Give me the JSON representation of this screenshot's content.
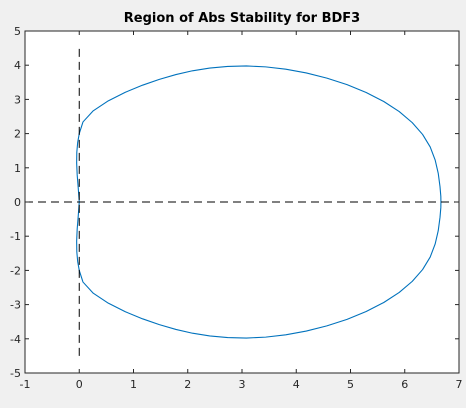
{
  "chart_data": {
    "type": "line",
    "title": "Region of Abs Stability for BDF3",
    "xlabel": "",
    "ylabel": "",
    "xlim": [
      -1,
      7
    ],
    "ylim": [
      -5,
      5
    ],
    "xticks": [
      -1,
      0,
      1,
      2,
      3,
      4,
      5,
      6,
      7
    ],
    "yticks": [
      -5,
      -4,
      -3,
      -2,
      -1,
      0,
      1,
      2,
      3,
      4,
      5
    ],
    "grid": false,
    "legend": "none",
    "background_color": "#f0f0f0",
    "axes_color": "#ffffff",
    "series": [
      {
        "style": "solid",
        "color": "#0072bd",
        "curve": "boundary locus z = (11/6 - 3w + 3/2 w^2 - 1/3 w^3)/w^3, w = exp(-i*theta)",
        "x": [
          0.0,
          0.069,
          0.258,
          0.535,
          0.85,
          1.167,
          1.476,
          1.782,
          2.088,
          2.405,
          2.735,
          3.08,
          3.437,
          3.807,
          4.185,
          4.564,
          4.936,
          5.289,
          5.613,
          5.898,
          6.138,
          6.329,
          6.469,
          6.56,
          6.617,
          6.65,
          6.665,
          6.667,
          6.665,
          6.65,
          6.617,
          6.56,
          6.469,
          6.329,
          6.138,
          5.898,
          5.613,
          5.289,
          4.936,
          4.564,
          4.185,
          3.807,
          3.437,
          3.08,
          2.735,
          2.405,
          2.088,
          1.782,
          1.476,
          1.167,
          0.85,
          0.535,
          0.258,
          0.069,
          0.0,
          -0.029,
          -0.045,
          -0.048,
          -0.038,
          -0.018,
          0.0,
          -0.018,
          -0.038,
          -0.048,
          -0.045,
          -0.029,
          0.0
        ],
        "y": [
          -2.0,
          -2.341,
          -2.667,
          -2.958,
          -3.209,
          -3.416,
          -3.585,
          -3.726,
          -3.837,
          -3.917,
          -3.965,
          -3.978,
          -3.951,
          -3.883,
          -3.773,
          -3.622,
          -3.431,
          -3.203,
          -2.939,
          -2.644,
          -2.321,
          -1.975,
          -1.61,
          -1.23,
          -0.842,
          -0.448,
          -0.163,
          0.0,
          0.163,
          0.448,
          0.842,
          1.23,
          1.61,
          1.975,
          2.321,
          2.644,
          2.939,
          3.203,
          3.431,
          3.622,
          3.773,
          3.883,
          3.951,
          3.978,
          3.965,
          3.917,
          3.837,
          3.726,
          3.585,
          3.416,
          3.209,
          2.958,
          2.667,
          2.341,
          2.0,
          1.739,
          1.455,
          1.142,
          0.791,
          0.397,
          0.0,
          -0.397,
          -0.791,
          -1.142,
          -1.455,
          -1.739,
          -2.0
        ]
      },
      {
        "style": "dashed",
        "color": "#000000",
        "x": [
          -1,
          7
        ],
        "y": [
          0,
          0
        ]
      },
      {
        "style": "dashed",
        "color": "#000000",
        "x": [
          0,
          0
        ],
        "y": [
          -4.5,
          4.5
        ]
      }
    ]
  }
}
